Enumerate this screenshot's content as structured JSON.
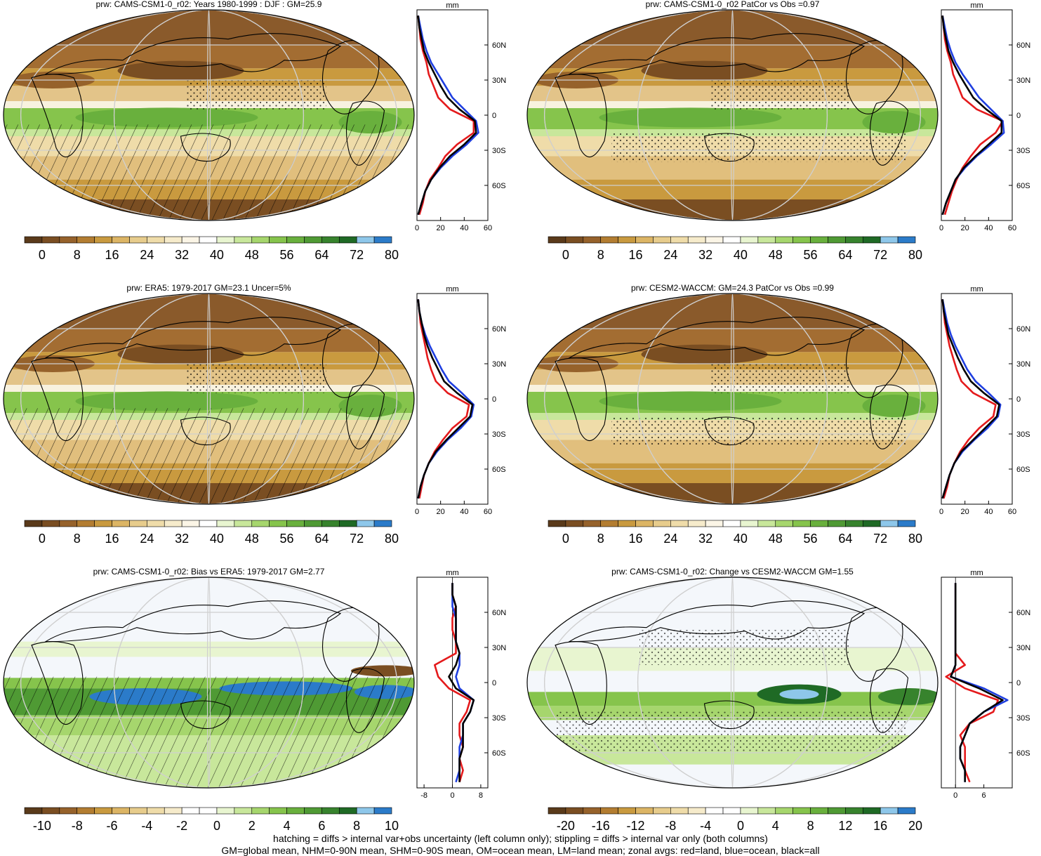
{
  "figure": {
    "footnote_line1": "hatching = diffs > internal var+obs uncertainty (left column only); stippling = diffs > internal var only (both columns)",
    "footnote_line2": "GM=global mean, NHM=0-90N mean, SHM=0-90S mean, OM=ocean mean, LM=land mean; zonal avgs: red=land, blue=ocean, black=all",
    "colors": {
      "zonal_land": "#e41a1c",
      "zonal_ocean": "#1f3fe0",
      "zonal_all": "#000000",
      "land_lines": "#000000"
    },
    "abs_palette": [
      "#5a3a1a",
      "#7a4e22",
      "#96622b",
      "#b37d31",
      "#c99a3f",
      "#dcb565",
      "#e7cc8c",
      "#efdca9",
      "#f6ebcb",
      "#fbf5e6",
      "#ffffff",
      "#e8f5d0",
      "#c8e79b",
      "#a6d66d",
      "#86c44c",
      "#69b03d",
      "#4f9a34",
      "#37832d",
      "#1f6a25",
      "#8ec7ea",
      "#2b7bc9"
    ],
    "diff_palette": [
      "#5a3a1a",
      "#7a4e22",
      "#96622b",
      "#b37d31",
      "#c99a3f",
      "#dcb565",
      "#e7cc8c",
      "#efdca9",
      "#f6ebcb",
      "#ffffff",
      "#ffffff",
      "#e8f5d0",
      "#c8e79b",
      "#a6d66d",
      "#86c44c",
      "#69b03d",
      "#4f9a34",
      "#37832d",
      "#1f6a25",
      "#8ec7ea",
      "#2b7bc9"
    ]
  },
  "chart_data": [
    {
      "type": "heatmap",
      "title": "prw: CAMS-CSM1-0_r02: Years 1980-1999 : DJF : GM=25.9",
      "colorbar_labels": [
        "0",
        "8",
        "16",
        "24",
        "32",
        "40",
        "48",
        "56",
        "64",
        "72",
        "80"
      ],
      "zonal_unit": "mm",
      "zonal_xlim": [
        0,
        60
      ],
      "zonal_xticks": [
        "0",
        "20",
        "40",
        "60"
      ],
      "zonal_ylim": [
        -90,
        90
      ],
      "lat_ticks": [
        "60N",
        "30N",
        "0",
        "30S",
        "60S"
      ],
      "lat_values": [
        60,
        30,
        0,
        -30,
        -60
      ],
      "zonal_lat": [
        -85,
        -75,
        -65,
        -55,
        -45,
        -35,
        -25,
        -15,
        -5,
        5,
        15,
        25,
        35,
        45,
        55,
        65,
        75,
        85
      ],
      "series": [
        {
          "name": "land",
          "values": [
            2,
            5,
            7,
            11,
            18,
            24,
            34,
            48,
            48,
            28,
            18,
            14,
            10,
            8,
            5,
            3,
            2,
            1
          ]
        },
        {
          "name": "ocean",
          "values": [
            1,
            4,
            7,
            12,
            20,
            30,
            42,
            52,
            50,
            40,
            30,
            24,
            18,
            12,
            8,
            5,
            3,
            1
          ]
        },
        {
          "name": "all",
          "values": [
            1,
            4,
            7,
            12,
            19,
            28,
            40,
            50,
            49,
            36,
            26,
            20,
            15,
            10,
            6,
            4,
            2,
            1
          ]
        }
      ]
    },
    {
      "type": "heatmap",
      "title": "prw: CAMS-CSM1-0_r02 PatCor vs Obs =0.97",
      "colorbar_labels": [
        "0",
        "8",
        "16",
        "24",
        "32",
        "40",
        "48",
        "56",
        "64",
        "72",
        "80"
      ],
      "zonal_unit": "mm",
      "zonal_xlim": [
        0,
        60
      ],
      "zonal_xticks": [
        "0",
        "20",
        "40",
        "60"
      ],
      "zonal_ylim": [
        -90,
        90
      ],
      "lat_ticks": [
        "60N",
        "30N",
        "0",
        "30S",
        "60S"
      ],
      "lat_values": [
        60,
        30,
        0,
        -30,
        -60
      ],
      "zonal_lat": [
        -85,
        -75,
        -65,
        -55,
        -45,
        -35,
        -25,
        -15,
        -5,
        5,
        15,
        25,
        35,
        45,
        55,
        65,
        75,
        85
      ],
      "series": [
        {
          "name": "land",
          "values": [
            3,
            6,
            9,
            13,
            18,
            25,
            33,
            46,
            52,
            30,
            18,
            14,
            10,
            8,
            5,
            3,
            2,
            1
          ]
        },
        {
          "name": "ocean",
          "values": [
            1,
            4,
            8,
            12,
            20,
            30,
            42,
            53,
            52,
            42,
            32,
            25,
            18,
            12,
            8,
            5,
            3,
            1
          ]
        },
        {
          "name": "all",
          "values": [
            1,
            4,
            8,
            12,
            19,
            29,
            40,
            51,
            51,
            38,
            27,
            21,
            15,
            10,
            6,
            4,
            2,
            1
          ]
        }
      ]
    },
    {
      "type": "heatmap",
      "title": "prw: ERA5: 1979-2017 GM=23.1 Uncer=5%",
      "colorbar_labels": [
        "0",
        "8",
        "16",
        "24",
        "32",
        "40",
        "48",
        "56",
        "64",
        "72",
        "80"
      ],
      "zonal_unit": "mm",
      "zonal_xlim": [
        0,
        60
      ],
      "zonal_xticks": [
        "0",
        "20",
        "40",
        "60"
      ],
      "zonal_ylim": [
        -90,
        90
      ],
      "lat_ticks": [
        "60N",
        "30N",
        "0",
        "30S",
        "60S"
      ],
      "lat_values": [
        60,
        30,
        0,
        -30,
        -60
      ],
      "zonal_lat": [
        -85,
        -75,
        -65,
        -55,
        -45,
        -35,
        -25,
        -15,
        -5,
        5,
        15,
        25,
        35,
        45,
        55,
        65,
        75,
        85
      ],
      "series": [
        {
          "name": "land",
          "values": [
            2,
            4,
            6,
            10,
            15,
            22,
            30,
            42,
            44,
            26,
            16,
            12,
            9,
            7,
            5,
            3,
            2,
            1
          ]
        },
        {
          "name": "ocean",
          "values": [
            1,
            3,
            6,
            10,
            17,
            26,
            37,
            46,
            48,
            38,
            27,
            21,
            16,
            11,
            7,
            4,
            2,
            1
          ]
        },
        {
          "name": "all",
          "values": [
            1,
            3,
            6,
            10,
            16,
            25,
            35,
            45,
            47,
            34,
            23,
            18,
            13,
            9,
            6,
            4,
            2,
            1
          ]
        }
      ]
    },
    {
      "type": "heatmap",
      "title": "prw: CESM2-WACCM: GM=24.3 PatCor vs Obs =0.99",
      "colorbar_labels": [
        "0",
        "8",
        "16",
        "24",
        "32",
        "40",
        "48",
        "56",
        "64",
        "72",
        "80"
      ],
      "zonal_unit": "mm",
      "zonal_xlim": [
        0,
        60
      ],
      "zonal_xticks": [
        "0",
        "20",
        "40",
        "60"
      ],
      "zonal_ylim": [
        -90,
        90
      ],
      "lat_ticks": [
        "60N",
        "30N",
        "0",
        "30S",
        "60S"
      ],
      "lat_values": [
        60,
        30,
        0,
        -30,
        -60
      ],
      "zonal_lat": [
        -85,
        -75,
        -65,
        -55,
        -45,
        -35,
        -25,
        -15,
        -5,
        5,
        15,
        25,
        35,
        45,
        55,
        65,
        75,
        85
      ],
      "series": [
        {
          "name": "land",
          "values": [
            2,
            5,
            7,
            11,
            16,
            23,
            32,
            44,
            46,
            27,
            17,
            13,
            10,
            7,
            5,
            3,
            2,
            1
          ]
        },
        {
          "name": "ocean",
          "values": [
            1,
            4,
            7,
            11,
            18,
            28,
            39,
            48,
            50,
            40,
            29,
            22,
            17,
            12,
            8,
            5,
            3,
            1
          ]
        },
        {
          "name": "all",
          "values": [
            1,
            4,
            7,
            11,
            17,
            27,
            37,
            47,
            49,
            36,
            25,
            19,
            14,
            10,
            6,
            4,
            2,
            1
          ]
        }
      ]
    },
    {
      "type": "heatmap",
      "title": "prw: CAMS-CSM1-0_r02: Bias vs ERA5: 1979-2017 GM=2.77",
      "colorbar_labels": [
        "-10",
        "-8",
        "-6",
        "-4",
        "-2",
        "0",
        "2",
        "4",
        "6",
        "8",
        "10"
      ],
      "zonal_unit": "mm",
      "zonal_xlim": [
        -10,
        10
      ],
      "zonal_xticks": [
        "-8",
        "0",
        "8"
      ],
      "zonal_ylim": [
        -90,
        90
      ],
      "lat_ticks": [
        "60N",
        "30N",
        "0",
        "30S",
        "60S"
      ],
      "lat_values": [
        60,
        30,
        0,
        -30,
        -60
      ],
      "zonal_lat": [
        -85,
        -75,
        -65,
        -55,
        -45,
        -35,
        -25,
        -15,
        -5,
        5,
        15,
        25,
        35,
        45,
        55,
        65,
        75,
        85
      ],
      "series": [
        {
          "name": "land",
          "values": [
            2,
            3,
            2,
            3,
            2,
            2,
            4,
            5,
            -1,
            -4,
            -5,
            1,
            1,
            0,
            0,
            1,
            0,
            0
          ]
        },
        {
          "name": "ocean",
          "values": [
            1,
            2,
            2,
            2,
            3,
            3,
            5,
            6,
            2,
            1,
            2,
            2,
            1,
            1,
            1,
            0,
            0,
            0
          ]
        },
        {
          "name": "all",
          "values": [
            2,
            2,
            2,
            3,
            3,
            3,
            5,
            6,
            1,
            -1,
            1,
            2,
            1,
            1,
            1,
            1,
            0,
            0
          ]
        }
      ]
    },
    {
      "type": "heatmap",
      "title": "prw: CAMS-CSM1-0_r02: Change vs CESM2-WACCM GM=1.55",
      "colorbar_labels": [
        "-20",
        "-16",
        "-12",
        "-8",
        "-4",
        "0",
        "4",
        "8",
        "12",
        "16",
        "20"
      ],
      "zonal_unit": "mm",
      "zonal_xlim": [
        -3,
        12
      ],
      "zonal_xticks": [
        "0",
        "6"
      ],
      "zonal_ylim": [
        -90,
        90
      ],
      "lat_ticks": [
        "60N",
        "30N",
        "0",
        "30S",
        "60S"
      ],
      "lat_values": [
        60,
        30,
        0,
        -30,
        -60
      ],
      "zonal_lat": [
        -85,
        -75,
        -65,
        -55,
        -45,
        -35,
        -25,
        -15,
        -5,
        5,
        15,
        25,
        35,
        45,
        55,
        65,
        75,
        85
      ],
      "series": [
        {
          "name": "land",
          "values": [
            3,
            2,
            2,
            2,
            1,
            3,
            8,
            9,
            2,
            -2,
            2,
            0,
            0,
            0,
            0,
            0,
            0,
            0
          ]
        },
        {
          "name": "ocean",
          "values": [
            2,
            2,
            1,
            1,
            2,
            3,
            6,
            11,
            6,
            -1,
            0,
            0,
            0,
            0,
            0,
            0,
            0,
            0
          ]
        },
        {
          "name": "all",
          "values": [
            2,
            2,
            1,
            1,
            2,
            3,
            6,
            10,
            5,
            -1,
            0,
            0,
            0,
            0,
            0,
            0,
            0,
            0
          ]
        }
      ]
    }
  ]
}
